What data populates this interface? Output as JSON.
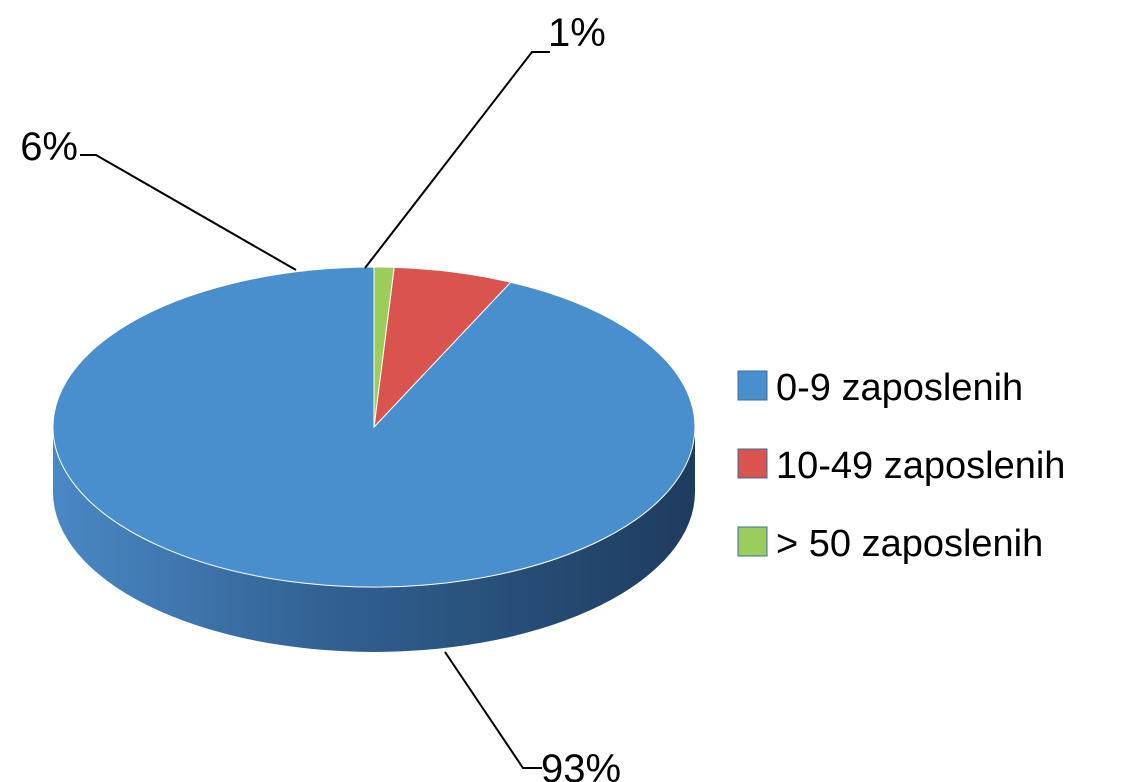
{
  "chart_data": {
    "type": "pie",
    "style": "3d",
    "categories": [
      "0-9 zaposlenih",
      "10-49 zaposlenih",
      "> 50 zaposlenih"
    ],
    "values": [
      93,
      6,
      1
    ],
    "data_labels": [
      "93%",
      "6%",
      "1%"
    ],
    "colors": [
      "#4a8fcd",
      "#d9534f",
      "#9acd5b"
    ],
    "legend_position": "right"
  }
}
